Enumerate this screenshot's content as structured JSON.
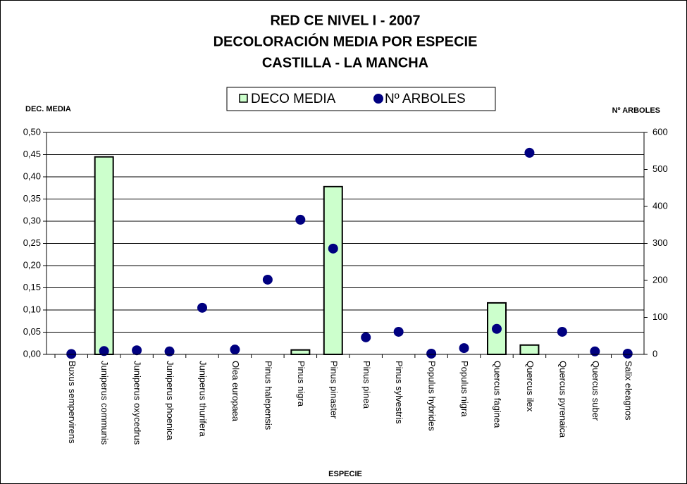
{
  "chart_data": {
    "type": "bar_scatter",
    "title": [
      "RED CE NIVEL I - 2007",
      "DECOLORACIÓN MEDIA POR ESPECIE",
      "CASTILLA - LA MANCHA"
    ],
    "ylabel": "DEC. MEDIA",
    "y2label": "Nº ARBOLES",
    "xlabel": "ESPECIE",
    "categories": [
      "Buxus sempervirens",
      "Juniperus communis",
      "Juniperus oxycedrus",
      "Juniperus phoenica",
      "Juniperus thurifera",
      "Olea europaea",
      "Pinus halepensis",
      "Pinus nigra",
      "Pinus pinaster",
      "Pinus pinea",
      "Pinus sylvestris",
      "Populus hybrides",
      "Populus nigra",
      "Quercus faginea",
      "Quercus ilex",
      "Quercus pyrenaica",
      "Quercus suber",
      "Salix eleagnos"
    ],
    "series": [
      {
        "name": "DECO MEDIA",
        "color": "#ccffcc",
        "values": [
          0,
          0.445,
          0,
          0,
          0,
          0,
          0,
          0.01,
          0.378,
          0,
          0,
          0,
          0,
          0.116,
          0.021,
          0,
          0,
          0
        ]
      },
      {
        "name": "Nº ARBOLES",
        "color": "#000080",
        "axis": "y2",
        "values": [
          1,
          9,
          11,
          8,
          126,
          13,
          202,
          364,
          286,
          46,
          61,
          2,
          17,
          69,
          545,
          61,
          8,
          2
        ]
      }
    ],
    "ylim": [
      0,
      0.5
    ],
    "yticks": [
      {
        "value": 0,
        "label": "0,00"
      },
      {
        "value": 0.05,
        "label": "0,05"
      },
      {
        "value": 0.1,
        "label": "0,10"
      },
      {
        "value": 0.15,
        "label": "0,15"
      },
      {
        "value": 0.2,
        "label": "0,20"
      },
      {
        "value": 0.25,
        "label": "0,25"
      },
      {
        "value": 0.3,
        "label": "0,30"
      },
      {
        "value": 0.35,
        "label": "0,35"
      },
      {
        "value": 0.4,
        "label": "0,40"
      },
      {
        "value": 0.45,
        "label": "0,45"
      },
      {
        "value": 0.5,
        "label": "0,50"
      }
    ],
    "y2lim": [
      0,
      600
    ],
    "y2ticks": [
      0,
      100,
      200,
      300,
      400,
      500,
      600
    ],
    "grid": true,
    "legend": "top"
  }
}
